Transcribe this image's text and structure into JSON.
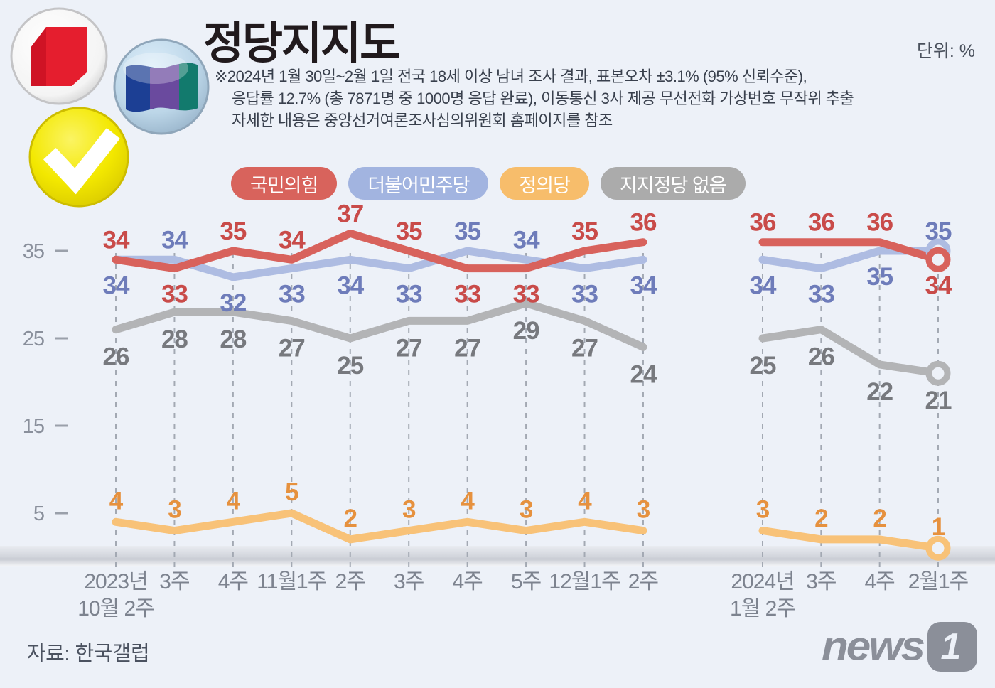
{
  "header": {
    "title": "정당지지도",
    "unit_label": "단위: %",
    "footnote_lines": [
      "※2024년 1월 30일~2월 1일 전국 18세 이상 남녀 조사 결과, 표본오차 ±3.1% (95% 신뢰수준),",
      "응답률 12.7% (총  7871명 중 1000명 응답 완료), 이동통신 3사 제공 무선전화 가상번호 무작위 추출",
      "자세한 내용은 중앙선거여론조사심의위원회 홈페이지를 참조"
    ]
  },
  "legend": {
    "items": [
      {
        "key": "ppp",
        "label": "국민의힘",
        "color": "#d8635c"
      },
      {
        "key": "dpk",
        "label": "더불어민주당",
        "color": "#a2b4e0"
      },
      {
        "key": "justice",
        "label": "정의당",
        "color": "#f7bd6b"
      },
      {
        "key": "none",
        "label": "지지정당 없음",
        "color": "#ababab"
      }
    ]
  },
  "chart_data": {
    "type": "line",
    "title": "정당지지도",
    "unit": "%",
    "y_ticks": [
      35,
      25,
      15,
      5
    ],
    "ylim": [
      0,
      40
    ],
    "grid": "dashed-vertical",
    "legend_position": "top",
    "series_meta": [
      {
        "key": "none",
        "name": "지지정당 없음",
        "line_color": "#b3b4b6",
        "label_color": "#77797e",
        "label_side": "below"
      },
      {
        "key": "dpk",
        "name": "더불어민주당",
        "line_color": "#aebce2",
        "label_color": "#6e7cba",
        "label_side": "auto"
      },
      {
        "key": "ppp",
        "name": "국민의힘",
        "line_color": "#d8625c",
        "label_color": "#c94b49",
        "label_side": "auto"
      },
      {
        "key": "justice",
        "name": "정의당",
        "line_color": "#f8c278",
        "label_color": "#e6913e",
        "label_side": "above"
      }
    ],
    "groups": [
      {
        "x_labels": [
          [
            "2023년",
            "10월 2주"
          ],
          [
            "3주"
          ],
          [
            "4주"
          ],
          [
            "11월1주"
          ],
          [
            "2주"
          ],
          [
            "3주"
          ],
          [
            "4주"
          ],
          [
            "5주"
          ],
          [
            "12월1주"
          ],
          [
            "2주"
          ]
        ],
        "end_markers": false,
        "series": {
          "ppp": [
            34,
            33,
            35,
            34,
            37,
            35,
            33,
            33,
            35,
            36
          ],
          "dpk": [
            34,
            34,
            32,
            33,
            34,
            33,
            35,
            34,
            33,
            34
          ],
          "none": [
            26,
            28,
            28,
            27,
            25,
            27,
            27,
            29,
            27,
            24
          ],
          "justice": [
            4,
            3,
            4,
            5,
            2,
            3,
            4,
            3,
            4,
            3
          ]
        }
      },
      {
        "x_labels": [
          [
            "2024년",
            "1월 2주"
          ],
          [
            "3주"
          ],
          [
            "4주"
          ],
          [
            "2월1주"
          ]
        ],
        "end_markers": true,
        "series": {
          "ppp": [
            36,
            36,
            36,
            34
          ],
          "dpk": [
            34,
            33,
            35,
            35
          ],
          "none": [
            25,
            26,
            22,
            21
          ],
          "justice": [
            3,
            2,
            2,
            1
          ]
        }
      }
    ]
  },
  "footer": {
    "source": "자료: 한국갤럽",
    "brand_word": "news",
    "brand_number": "1"
  }
}
